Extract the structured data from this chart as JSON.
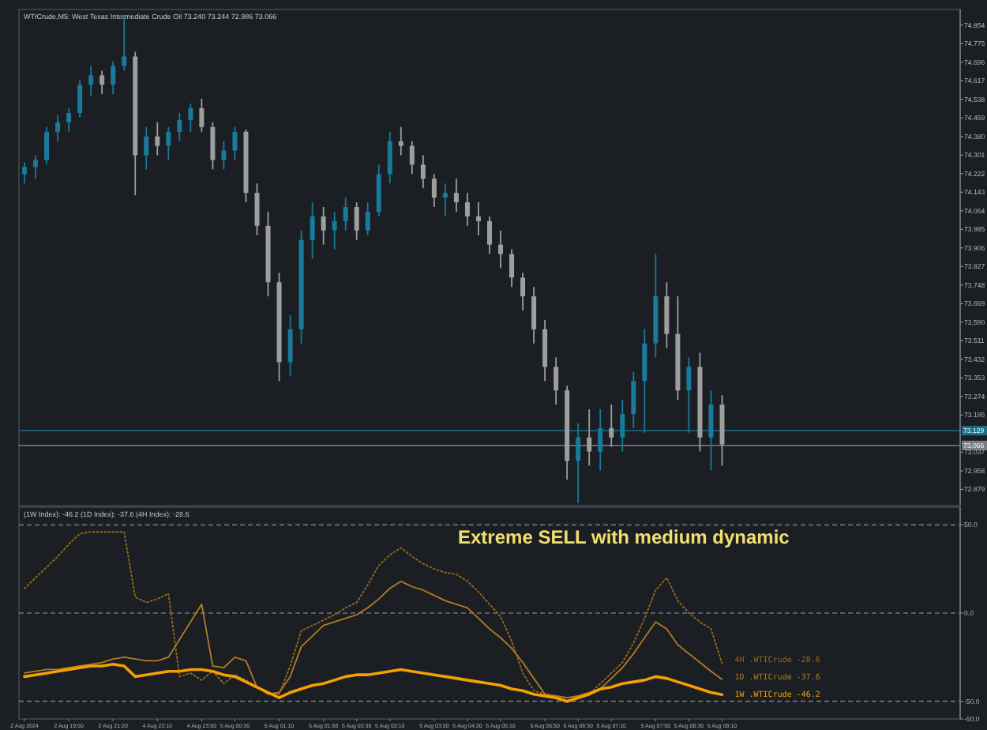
{
  "chart_data": [
    {
      "type": "candlestick",
      "title": "WTICrude,M5: West Texas Intermediate Crude Oil 73.240 73.244 72.986 73.066",
      "tick_labels": "y",
      "categories": [
        null,
        null,
        null,
        null,
        null,
        null,
        null,
        null,
        null,
        null,
        null,
        null,
        null,
        null,
        null,
        null,
        null,
        null,
        null,
        null,
        null,
        null,
        null,
        null,
        null,
        null,
        null,
        null,
        null,
        null,
        null,
        null,
        null,
        null,
        null,
        null,
        null,
        null,
        null,
        null,
        null,
        null,
        null,
        null,
        null,
        null,
        null,
        null,
        null,
        null,
        null,
        null,
        null,
        null,
        null,
        null,
        null,
        null,
        null,
        null,
        null,
        null,
        null,
        null,
        null,
        null,
        null,
        null,
        null,
        null,
        null,
        null,
        null,
        null,
        null,
        null,
        null,
        null,
        null,
        null,
        null,
        null,
        null,
        null,
        null
      ],
      "ohlc": [
        [
          74.22,
          74.27,
          74.18,
          74.25
        ],
        [
          74.25,
          74.3,
          74.2,
          74.28
        ],
        [
          74.28,
          74.42,
          74.26,
          74.4
        ],
        [
          74.4,
          74.47,
          74.36,
          74.44
        ],
        [
          74.44,
          74.5,
          74.4,
          74.48
        ],
        [
          74.48,
          74.62,
          74.46,
          74.6
        ],
        [
          74.6,
          74.68,
          74.55,
          74.64
        ],
        [
          74.64,
          74.66,
          74.56,
          74.6
        ],
        [
          74.6,
          74.7,
          74.56,
          74.68
        ],
        [
          74.68,
          74.89,
          74.66,
          74.72
        ],
        [
          74.72,
          74.74,
          74.13,
          74.3
        ],
        [
          74.3,
          74.42,
          74.24,
          74.38
        ],
        [
          74.38,
          74.44,
          74.3,
          74.34
        ],
        [
          74.34,
          74.42,
          74.28,
          74.4
        ],
        [
          74.4,
          74.48,
          74.36,
          74.45
        ],
        [
          74.45,
          74.52,
          74.4,
          74.5
        ],
        [
          74.5,
          74.54,
          74.4,
          74.42
        ],
        [
          74.42,
          74.44,
          74.24,
          74.28
        ],
        [
          74.28,
          74.36,
          74.24,
          74.32
        ],
        [
          74.32,
          74.42,
          74.28,
          74.4
        ],
        [
          74.4,
          74.41,
          74.1,
          74.14
        ],
        [
          74.14,
          74.18,
          73.96,
          74.0
        ],
        [
          74.0,
          74.06,
          73.7,
          73.76
        ],
        [
          73.76,
          73.8,
          73.34,
          73.42
        ],
        [
          73.42,
          73.62,
          73.36,
          73.56
        ],
        [
          73.56,
          73.98,
          73.5,
          73.94
        ],
        [
          73.94,
          74.1,
          73.86,
          74.04
        ],
        [
          74.04,
          74.08,
          73.92,
          73.98
        ],
        [
          73.98,
          74.06,
          73.9,
          74.02
        ],
        [
          74.02,
          74.12,
          73.98,
          74.08
        ],
        [
          74.08,
          74.1,
          73.94,
          73.98
        ],
        [
          73.98,
          74.1,
          73.96,
          74.06
        ],
        [
          74.06,
          74.26,
          74.04,
          74.22
        ],
        [
          74.22,
          74.4,
          74.18,
          74.36
        ],
        [
          74.36,
          74.42,
          74.3,
          74.34
        ],
        [
          74.34,
          74.36,
          74.22,
          74.26
        ],
        [
          74.26,
          74.3,
          74.16,
          74.2
        ],
        [
          74.2,
          74.22,
          74.08,
          74.12
        ],
        [
          74.12,
          74.18,
          74.04,
          74.14
        ],
        [
          74.14,
          74.2,
          74.06,
          74.1
        ],
        [
          74.1,
          74.14,
          74.0,
          74.04
        ],
        [
          74.04,
          74.1,
          73.96,
          74.02
        ],
        [
          74.02,
          74.04,
          73.88,
          73.92
        ],
        [
          73.92,
          73.98,
          73.82,
          73.88
        ],
        [
          73.88,
          73.9,
          73.74,
          73.78
        ],
        [
          73.78,
          73.8,
          73.64,
          73.7
        ],
        [
          73.7,
          73.74,
          73.5,
          73.56
        ],
        [
          73.56,
          73.6,
          73.34,
          73.4
        ],
        [
          73.4,
          73.44,
          73.24,
          73.3
        ],
        [
          73.3,
          73.32,
          72.92,
          73.0
        ],
        [
          73.0,
          73.16,
          72.82,
          73.1
        ],
        [
          73.1,
          73.22,
          72.98,
          73.04
        ],
        [
          73.04,
          73.22,
          72.96,
          73.14
        ],
        [
          73.14,
          73.24,
          73.06,
          73.1
        ],
        [
          73.1,
          73.26,
          73.04,
          73.2
        ],
        [
          73.2,
          73.38,
          73.14,
          73.34
        ],
        [
          73.34,
          73.56,
          73.12,
          73.5
        ],
        [
          73.5,
          73.88,
          73.44,
          73.7
        ],
        [
          73.7,
          73.76,
          73.48,
          73.54
        ],
        [
          73.54,
          73.7,
          73.26,
          73.3
        ],
        [
          73.3,
          73.44,
          73.12,
          73.4
        ],
        [
          73.4,
          73.46,
          73.04,
          73.1
        ],
        [
          73.1,
          73.3,
          72.96,
          73.24
        ],
        [
          73.24,
          73.28,
          72.98,
          73.07
        ],
        null,
        null,
        null,
        null,
        null,
        null,
        null,
        null,
        null,
        null,
        null,
        null,
        null,
        null,
        null,
        null,
        null,
        null,
        null,
        null,
        null
      ],
      "colors": [
        "#1a7a9c",
        "#1a7a9c",
        "#1a7a9c",
        "#1a7a9c",
        "#1a7a9c",
        "#1a7a9c",
        "#1a7a9c",
        "#9e9e9e",
        "#1a7a9c",
        "#1a7a9c",
        "#9e9e9e",
        "#1a7a9c",
        "#9e9e9e",
        "#1a7a9c",
        "#1a7a9c",
        "#1a7a9c",
        "#9e9e9e",
        "#9e9e9e",
        "#1a7a9c",
        "#1a7a9c",
        "#9e9e9e",
        "#9e9e9e",
        "#9e9e9e",
        "#9e9e9e",
        "#1a7a9c",
        "#1a7a9c",
        "#1a7a9c",
        "#9e9e9e",
        "#1a7a9c",
        "#1a7a9c",
        "#9e9e9e",
        "#1a7a9c",
        "#1a7a9c",
        "#1a7a9c",
        "#9e9e9e",
        "#9e9e9e",
        "#9e9e9e",
        "#9e9e9e",
        "#1a7a9c",
        "#9e9e9e",
        "#9e9e9e",
        "#9e9e9e",
        "#9e9e9e",
        "#9e9e9e",
        "#9e9e9e",
        "#9e9e9e",
        "#9e9e9e",
        "#9e9e9e",
        "#9e9e9e",
        "#9e9e9e",
        "#1a7a9c",
        "#9e9e9e",
        "#1a7a9c",
        "#9e9e9e",
        "#1a7a9c",
        "#1a7a9c",
        "#1a7a9c",
        "#1a7a9c",
        "#9e9e9e",
        "#9e9e9e",
        "#1a7a9c",
        "#9e9e9e",
        "#1a7a9c",
        "#9e9e9e",
        null,
        null,
        null,
        null,
        null,
        null,
        null,
        null,
        null,
        null,
        null,
        null,
        null,
        null,
        null,
        null,
        null,
        null,
        null,
        null,
        null
      ],
      "ylim": [
        72.81,
        74.92
      ],
      "yticks": [
        {
          "value": 74.854,
          "label": "74.854"
        },
        {
          "value": 74.775,
          "label": "74.775"
        },
        {
          "value": 74.696,
          "label": "74.696"
        },
        {
          "value": 74.617,
          "label": "74.617"
        },
        {
          "value": 74.538,
          "label": "74.538"
        },
        {
          "value": 74.459,
          "label": "74.459"
        },
        {
          "value": 74.38,
          "label": "74.380"
        },
        {
          "value": 74.301,
          "label": "74.301"
        },
        {
          "value": 74.222,
          "label": "74.222"
        },
        {
          "value": 74.143,
          "label": "74.143"
        },
        {
          "value": 74.064,
          "label": "74.064"
        },
        {
          "value": 73.985,
          "label": "73.985"
        },
        {
          "value": 73.906,
          "label": "73.906"
        },
        {
          "value": 73.827,
          "label": "73.827"
        },
        {
          "value": 73.748,
          "label": "73.748"
        },
        {
          "value": 73.669,
          "label": "73.669"
        },
        {
          "value": 73.59,
          "label": "73.590"
        },
        {
          "value": 73.511,
          "label": "73.511"
        },
        {
          "value": 73.432,
          "label": "73.432"
        },
        {
          "value": 73.353,
          "label": "73.353"
        },
        {
          "value": 73.274,
          "label": "73.274"
        },
        {
          "value": 73.195,
          "label": "73.195"
        },
        {
          "value": 73.037,
          "label": "73.037"
        },
        {
          "value": 72.958,
          "label": "72.958"
        },
        {
          "value": 72.879,
          "label": "72.879"
        }
      ],
      "ref_lines": [
        {
          "axis": "y",
          "value": 73.129,
          "label": "73.129",
          "color": "#1a6f8a"
        },
        {
          "axis": "y",
          "value": 73.066,
          "label": "73.066",
          "color": "#7a7f85"
        }
      ]
    },
    {
      "type": "line",
      "title": "(1W Index): -46.2 (1D Index): -37.6 (4H Index): -28.6",
      "categories": [
        "2 Aug 2024",
        null,
        null,
        null,
        "2 Aug 19:50",
        null,
        null,
        null,
        "2 Aug 21:20",
        null,
        null,
        null,
        "4 Aug 23:10",
        null,
        null,
        null,
        "4 Aug 23:50",
        null,
        null,
        "5 Aug 00:30",
        null,
        null,
        null,
        "5 Aug 01:10",
        null,
        null,
        null,
        "5 Aug 01:50",
        null,
        null,
        "5 Aug 02:30",
        null,
        null,
        "5 Aug 03:10",
        null,
        null,
        null,
        "5 Aug 03:50",
        null,
        null,
        "5 Aug 04:30",
        null,
        null,
        "5 Aug 05:10",
        null,
        null,
        null,
        "5 Aug 05:50",
        null,
        null,
        "5 Aug 06:30",
        null,
        null,
        "5 Aug 07:10",
        null,
        null,
        null,
        "5 Aug 07:50",
        null,
        null,
        "5 Aug 08:30",
        null,
        null,
        "5 Aug 09:10",
        null,
        null,
        null,
        null,
        null,
        null,
        null,
        null,
        null,
        null,
        null,
        null,
        null,
        null,
        null,
        null,
        null,
        null,
        null,
        null,
        null
      ],
      "series": [
        {
          "name": "4H .WTICrude -28.6",
          "color": "#9a6a1c",
          "line_style": "dotted",
          "values": [
            14,
            20,
            26,
            32,
            39,
            45,
            46,
            46,
            46,
            46,
            9,
            6,
            8,
            11,
            -36,
            -34,
            -38,
            -33,
            -40,
            -35,
            -38,
            -42,
            -46,
            -46,
            -30,
            -10,
            -7,
            -4,
            -1,
            3,
            6,
            16,
            27,
            33,
            37,
            32,
            28,
            25,
            23,
            22,
            18,
            12,
            5,
            -2,
            -16,
            -34,
            -44,
            -46,
            -47,
            -48,
            -47,
            -46,
            -40,
            -34,
            -28,
            -17,
            -3,
            13,
            20,
            7,
            0,
            -5,
            -9,
            -28.6,
            null,
            null,
            null,
            null,
            null,
            null,
            null,
            null,
            null,
            null,
            null,
            null,
            null,
            null,
            null,
            null,
            null,
            null,
            null,
            null,
            null
          ]
        },
        {
          "name": "1D .WTICrude -37.6",
          "color": "#b07d22",
          "line_style": "solid",
          "values": [
            -34,
            -33,
            -32,
            -32,
            -31,
            -30,
            -29,
            -28,
            -26,
            -25,
            -26,
            -27,
            -27,
            -25,
            -15,
            -5,
            5,
            -30,
            -31,
            -25,
            -27,
            -42,
            -46,
            -45,
            -36,
            -19,
            -13,
            -7,
            -5,
            -3,
            -1,
            3,
            8,
            14,
            18,
            15,
            13,
            10,
            7,
            5,
            3,
            -3,
            -9,
            -14,
            -20,
            -28,
            -37,
            -46,
            -47,
            -48,
            -47,
            -45,
            -43,
            -37,
            -31,
            -23,
            -14,
            -5,
            -9,
            -18,
            -23,
            -28,
            -33,
            -37.6,
            null,
            null,
            null,
            null,
            null,
            null,
            null,
            null,
            null,
            null,
            null,
            null,
            null,
            null,
            null,
            null,
            null,
            null,
            null,
            null,
            null
          ]
        },
        {
          "name": "1W .WTICrude -46.2",
          "color": "#f5a000",
          "line_style": "solid",
          "values": [
            -36,
            -35,
            -34,
            -33,
            -32,
            -31,
            -30,
            -30,
            -29,
            -30,
            -36,
            -35,
            -34,
            -33,
            -33,
            -32,
            -32,
            -33,
            -35,
            -36,
            -39,
            -42,
            -45,
            -48,
            -45,
            -43,
            -41,
            -40,
            -38,
            -36,
            -35,
            -35,
            -34,
            -33,
            -32,
            -33,
            -34,
            -35,
            -36,
            -37,
            -38,
            -39,
            -40,
            -41,
            -43,
            -44,
            -46,
            -47,
            -48,
            -50,
            -48,
            -46,
            -43,
            -42,
            -40,
            -39,
            -38,
            -36,
            -37,
            -39,
            -41,
            -43,
            -45,
            -46.2,
            null,
            null,
            null,
            null,
            null,
            null,
            null,
            null,
            null,
            null,
            null,
            null,
            null,
            null,
            null,
            null,
            null,
            null,
            null,
            null,
            null
          ]
        }
      ],
      "ylim": [
        -60,
        60
      ],
      "yticks": [
        {
          "value": 50,
          "label": "50.0"
        },
        {
          "value": 0,
          "label": "0.0"
        },
        {
          "value": -50,
          "label": "-50.0"
        },
        {
          "value": -60,
          "label": "-60.0"
        }
      ],
      "ref_lines": [
        {
          "axis": "y",
          "value": 50,
          "line_style": "dashed",
          "color": "#6f757c"
        },
        {
          "axis": "y",
          "value": 0,
          "line_style": "dashed",
          "color": "#6f757c"
        },
        {
          "axis": "y",
          "value": -50,
          "line_style": "dashed",
          "color": "#6f757c"
        }
      ],
      "annotations": [
        "Extreme SELL with medium dynamic"
      ]
    }
  ]
}
